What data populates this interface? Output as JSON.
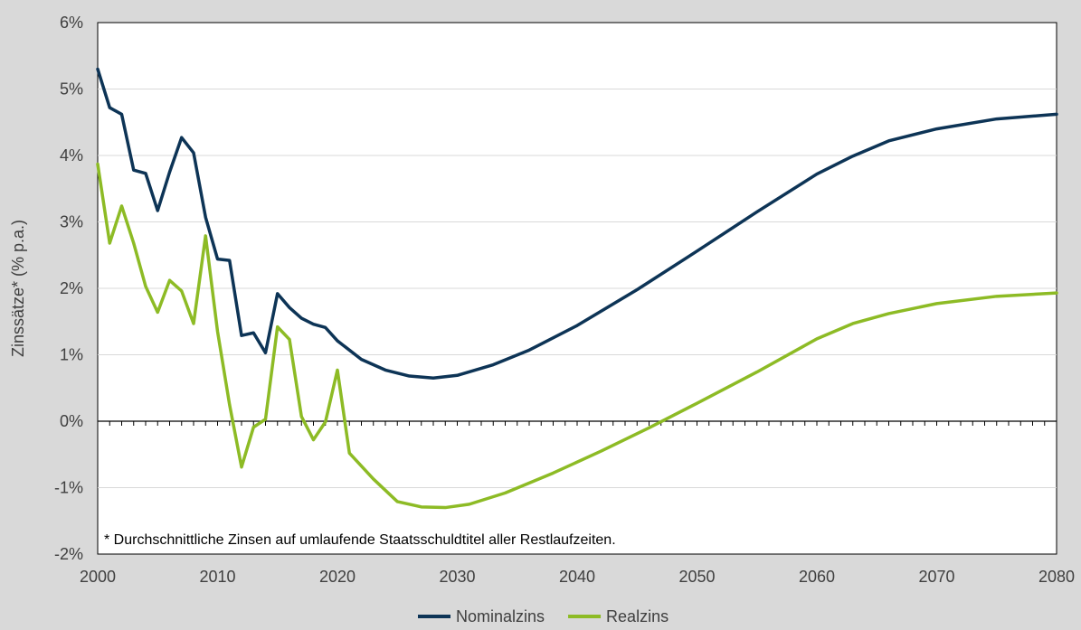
{
  "chart_data": {
    "type": "line",
    "ylabel": "Zinssätze* (% p.a.)",
    "xlabel": "",
    "xlim": [
      2000,
      2080
    ],
    "ylim": [
      -2,
      6
    ],
    "xticks": [
      2000,
      2010,
      2020,
      2030,
      2040,
      2050,
      2060,
      2070,
      2080
    ],
    "yticks": [
      -2,
      -1,
      0,
      1,
      2,
      3,
      4,
      5,
      6
    ],
    "ytick_labels": [
      "-2%",
      "-1%",
      "0%",
      "1%",
      "2%",
      "3%",
      "4%",
      "5%",
      "6%"
    ],
    "grid": "horizontal",
    "legend_position": "bottom-center",
    "footnote": "* Durchschnittliche Zinsen auf umlaufende Staatsschuldtitel aller Restlaufzeiten.",
    "series": [
      {
        "name": "Nominalzins",
        "color": "#0d3456",
        "x": [
          2000,
          2001,
          2002,
          2003,
          2004,
          2005,
          2006,
          2007,
          2008,
          2009,
          2010,
          2011,
          2012,
          2013,
          2014,
          2015,
          2016,
          2017,
          2018,
          2019,
          2020,
          2022,
          2024,
          2026,
          2028,
          2030,
          2033,
          2036,
          2040,
          2045,
          2050,
          2055,
          2060,
          2063,
          2066,
          2070,
          2075,
          2080
        ],
        "values": [
          5.3,
          4.72,
          4.62,
          3.78,
          3.73,
          3.17,
          3.75,
          4.27,
          4.04,
          3.07,
          2.44,
          2.42,
          1.29,
          1.33,
          1.03,
          1.92,
          1.71,
          1.55,
          1.46,
          1.41,
          1.21,
          0.93,
          0.77,
          0.68,
          0.65,
          0.69,
          0.85,
          1.07,
          1.44,
          1.98,
          2.56,
          3.15,
          3.72,
          3.99,
          4.22,
          4.4,
          4.55,
          4.62
        ]
      },
      {
        "name": "Realzins",
        "color": "#8dbb25",
        "x": [
          2000,
          2001,
          2002,
          2003,
          2004,
          2005,
          2006,
          2007,
          2008,
          2009,
          2010,
          2011,
          2012,
          2013,
          2014,
          2015,
          2016,
          2017,
          2018,
          2019,
          2020,
          2021,
          2023,
          2025,
          2027,
          2029,
          2031,
          2034,
          2038,
          2042,
          2046,
          2050,
          2055,
          2060,
          2063,
          2066,
          2070,
          2075,
          2080
        ],
        "values": [
          3.87,
          2.68,
          3.24,
          2.68,
          2.03,
          1.64,
          2.12,
          1.96,
          1.47,
          2.79,
          1.35,
          0.25,
          -0.69,
          -0.09,
          0.03,
          1.42,
          1.23,
          0.07,
          -0.28,
          -0.01,
          0.77,
          -0.48,
          -0.87,
          -1.21,
          -1.29,
          -1.3,
          -1.25,
          -1.08,
          -0.78,
          -0.45,
          -0.1,
          0.27,
          0.74,
          1.24,
          1.47,
          1.62,
          1.77,
          1.88,
          1.93
        ]
      }
    ]
  }
}
